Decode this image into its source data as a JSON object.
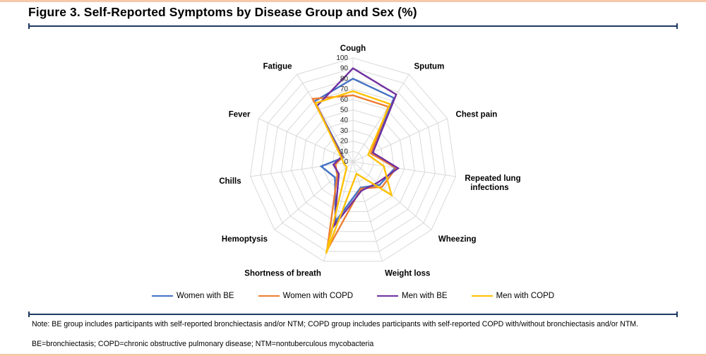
{
  "page": {
    "title": "Figure 3. Self-Reported Symptoms by Disease Group and Sex (%)",
    "note": "Note: BE group includes participants with self-reported bronchiectasis and/or NTM; COPD group includes participants with self-reported COPD with/without bronchiectasis and/or NTM.",
    "footnote": "BE=bronchiectasis; COPD=chronic obstructive pulmonary disease; NTM=nontuberculous mycobacteria"
  },
  "colors": {
    "accent_navy": "#1F3864",
    "border_salmon": "#F5C9A9",
    "grid": "#D9D9D9",
    "tick_text": "#1a1a1a"
  },
  "chart_data": {
    "type": "radar",
    "title": "Self-Reported Symptoms by Disease Group and Sex (%)",
    "axis_range": [
      0,
      100
    ],
    "ticks": [
      0,
      10,
      20,
      30,
      40,
      50,
      60,
      70,
      80,
      90,
      100
    ],
    "grid": true,
    "legend_position": "bottom",
    "categories": [
      "Cough",
      "Sputum",
      "Chest pain",
      "Repeated lung infections",
      "Wheezing",
      "Weight loss",
      "Shortness of breath",
      "Hemoptysis",
      "Chills",
      "Fever",
      "Fatigue"
    ],
    "series": [
      {
        "name": "Women with BE",
        "color": "#4472C4",
        "values": [
          80,
          73,
          20,
          41,
          34,
          26,
          60,
          23,
          31,
          10,
          69
        ]
      },
      {
        "name": "Women with COPD",
        "color": "#ED7D31",
        "values": [
          64,
          63,
          19,
          42,
          37,
          27,
          89,
          20,
          17,
          11,
          72
        ]
      },
      {
        "name": "Men with BE",
        "color": "#7030A0",
        "values": [
          90,
          77,
          21,
          44,
          31,
          29,
          64,
          18,
          19,
          12,
          64
        ]
      },
      {
        "name": "Men with COPD",
        "color": "#FFC000",
        "values": [
          68,
          66,
          16,
          30,
          49,
          12,
          92,
          8,
          9,
          13,
          67
        ]
      }
    ]
  }
}
